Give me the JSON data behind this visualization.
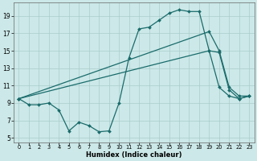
{
  "xlabel": "Humidex (Indice chaleur)",
  "background_color": "#cce8e8",
  "grid_color": "#aacccc",
  "line_color": "#1a6b6b",
  "xlim": [
    -0.5,
    23.5
  ],
  "ylim": [
    4.5,
    20.5
  ],
  "xticks": [
    0,
    1,
    2,
    3,
    4,
    5,
    6,
    7,
    8,
    9,
    10,
    11,
    12,
    13,
    14,
    15,
    16,
    17,
    18,
    19,
    20,
    21,
    22,
    23
  ],
  "yticks": [
    5,
    7,
    9,
    11,
    13,
    15,
    17,
    19
  ],
  "line1_x": [
    0,
    1,
    2,
    3,
    4,
    5,
    6,
    7,
    8,
    9,
    10,
    11,
    12,
    13,
    14,
    15,
    16,
    17,
    18,
    19,
    20,
    21,
    22,
    23
  ],
  "line1_y": [
    9.5,
    8.8,
    8.8,
    9.0,
    8.2,
    5.8,
    6.8,
    6.4,
    5.7,
    5.8,
    9.0,
    14.2,
    17.5,
    17.7,
    18.5,
    19.3,
    19.7,
    19.5,
    19.5,
    15.0,
    10.8,
    9.8,
    9.5,
    9.8
  ],
  "line2_x": [
    0,
    19,
    20,
    21,
    22,
    23
  ],
  "line2_y": [
    9.5,
    17.2,
    15.0,
    10.8,
    9.8,
    9.8
  ],
  "line3_x": [
    0,
    19,
    20,
    21,
    22,
    23
  ],
  "line3_y": [
    9.5,
    15.0,
    14.8,
    10.5,
    9.5,
    9.8
  ],
  "marker": "D",
  "markersize": 2.0,
  "linewidth": 0.9
}
